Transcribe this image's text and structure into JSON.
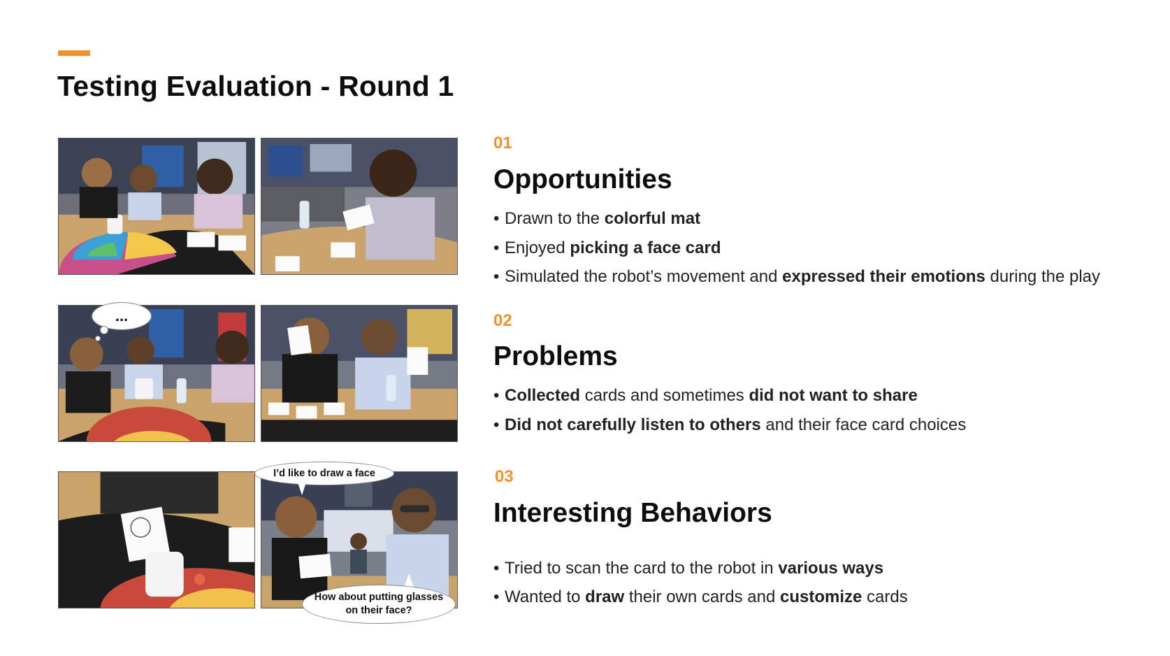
{
  "slide": {
    "title": "Testing Evaluation - Round 1",
    "accent_color": "#f0922e"
  },
  "bubbles": {
    "thinking": "...",
    "draw_face": "I’d like to draw a face",
    "glasses": "How about putting glasses on their face?"
  },
  "sections": [
    {
      "number": "01",
      "heading": "Opportunities",
      "bullets": [
        [
          {
            "t": "Drawn to the ",
            "b": false
          },
          {
            "t": "colorful mat",
            "b": true
          }
        ],
        [
          {
            "t": "Enjoyed ",
            "b": false
          },
          {
            "t": "picking a face card",
            "b": true
          }
        ],
        [
          {
            "t": "Simulated the robot’s movement and ",
            "b": false
          },
          {
            "t": "expressed their emotions",
            "b": true
          },
          {
            "t": " during the play",
            "b": false
          }
        ]
      ]
    },
    {
      "number": "02",
      "heading": "Problems",
      "bullets": [
        [
          {
            "t": "Collected",
            "b": true
          },
          {
            "t": " cards and sometimes ",
            "b": false
          },
          {
            "t": "did not want to share",
            "b": true
          }
        ],
        [
          {
            "t": "Did not carefully listen to others",
            "b": true
          },
          {
            "t": " and their face card choices",
            "b": false
          }
        ]
      ]
    },
    {
      "number": "03",
      "heading": "Interesting Behaviors",
      "bullets": [
        [
          {
            "t": "Tried to scan the card to the robot in ",
            "b": false
          },
          {
            "t": "various ways",
            "b": true
          }
        ],
        [
          {
            "t": "Wanted to ",
            "b": false
          },
          {
            "t": "draw",
            "b": true
          },
          {
            "t": " their own cards and ",
            "b": false
          },
          {
            "t": "customize",
            "b": true
          },
          {
            "t": " cards",
            "b": false
          }
        ]
      ]
    }
  ]
}
